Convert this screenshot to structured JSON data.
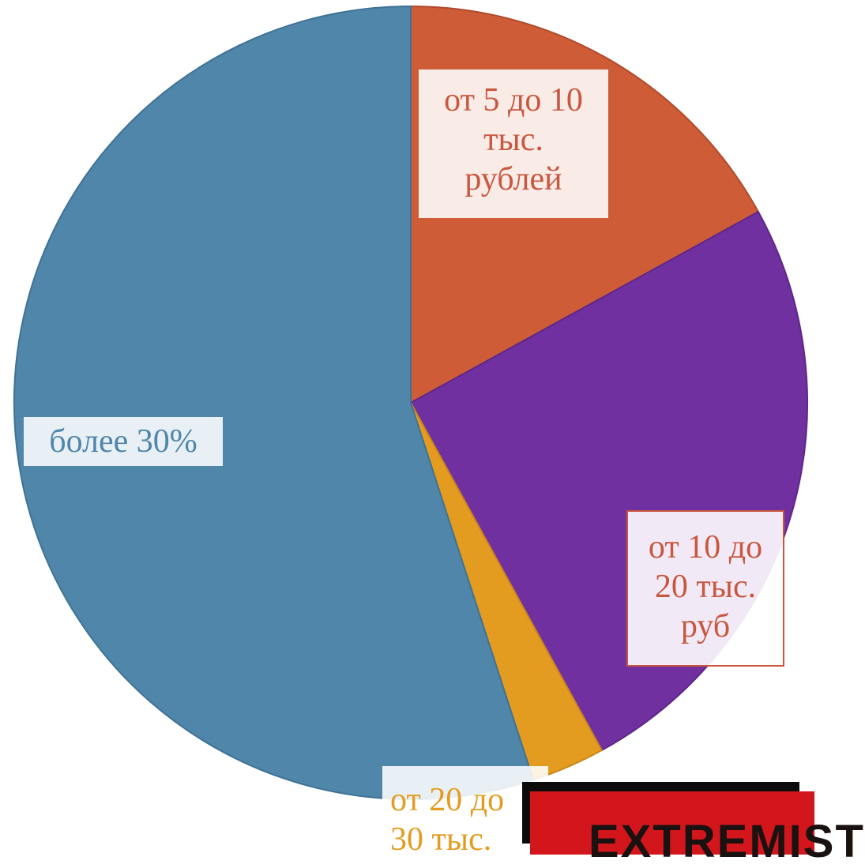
{
  "chart_data": {
    "type": "pie",
    "start_angle_deg": 0,
    "direction": "clockwise",
    "slices": [
      {
        "label": "от 5 до 10 тыс. рублей",
        "label_lines": [
          "от 5 до 10",
          "тыс.",
          "рублей"
        ],
        "value": 17,
        "color": "#CD5C37"
      },
      {
        "label": "от 10 до 20 тыс. руб",
        "label_lines": [
          "от 10 до",
          "20 тыс.",
          "руб"
        ],
        "value": 25,
        "color": "#7030A0"
      },
      {
        "label": "от 20 до 30 тыс.",
        "label_lines": [
          "от 20 до",
          "30 тыс."
        ],
        "value": 3,
        "color": "#E39C1F"
      },
      {
        "label": "более 30%",
        "label_lines": [
          "более 30%"
        ],
        "value": 55,
        "color": "#4F86AA"
      }
    ],
    "label_colors": [
      "#C9573F",
      "#C9573F",
      "#E39C1F",
      "#4F86AA"
    ]
  },
  "overlay": {
    "banner_text": "EXTREMIST"
  }
}
